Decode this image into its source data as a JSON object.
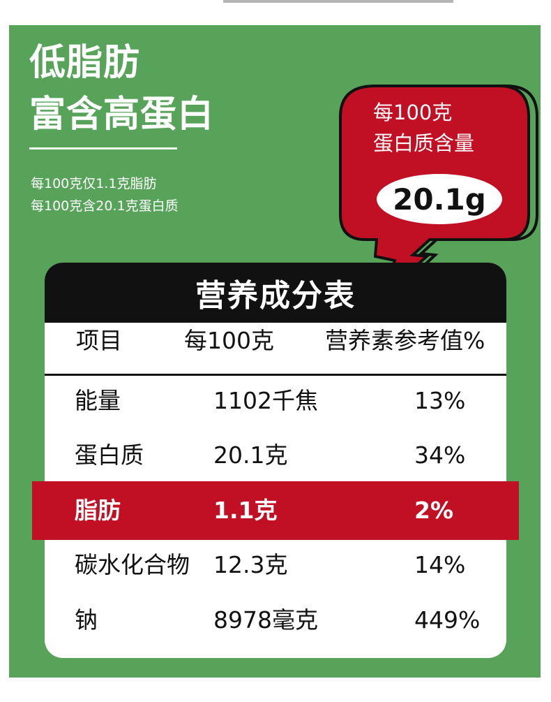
{
  "headline": {
    "line1": "低脂肪",
    "line2": "富含高蛋白"
  },
  "notes": [
    "每100克仅1.1克脂肪",
    "每100克含20.1克蛋白质"
  ],
  "bubble": {
    "line1": "每100克",
    "line2": "蛋白质含量",
    "value": "20.1g"
  },
  "table": {
    "title": "营养成分表",
    "headers": [
      "项目",
      "每100克",
      "营养素参考值%"
    ],
    "rows": [
      {
        "item": "能量",
        "per100": "1102千焦",
        "nrv": "13%"
      },
      {
        "item": "蛋白质",
        "per100": "20.1克",
        "nrv": "34%"
      },
      {
        "item": "脂肪",
        "per100": "1.1克",
        "nrv": "2%"
      },
      {
        "item": "碳水化合物",
        "per100": "12.3克",
        "nrv": "14%"
      },
      {
        "item": "钠",
        "per100": "8978毫克",
        "nrv": "449%"
      }
    ]
  },
  "colors": {
    "panel": "#57a35a",
    "accent": "#c11023",
    "header": "#111111"
  }
}
